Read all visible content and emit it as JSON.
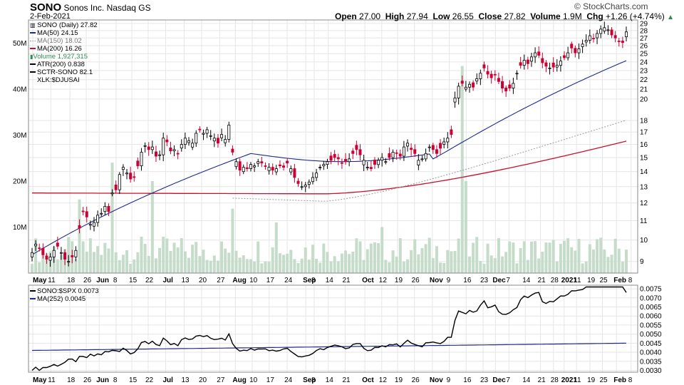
{
  "header": {
    "symbol": "SONO",
    "company": "Sonos Inc.",
    "exchange": "Nasdaq GS",
    "date": "2-Feb-2021",
    "open_label": "Open",
    "open": "27.00",
    "high_label": "High",
    "high": "27.94",
    "low_label": "Low",
    "low": "26.55",
    "close_label": "Close",
    "close": "27.82",
    "volume_label": "Volume",
    "volume": "1.9M",
    "chg_label": "Chg",
    "chg": "+1.26 (+4.74%)",
    "logo": "© StockCharts.com",
    "arrow_icon": "up-triangle-icon"
  },
  "legend": {
    "price": "SONO (Daily) 27.82",
    "ma50": "MA(50) 24.15",
    "ma150": "MA(150) 18.02",
    "ma200": "MA(200) 16.26",
    "volume": "Volume 1,927,315",
    "atr": "ATR(200) 0.838",
    "sctr": "SCTR-SONO 82.1",
    "sector": "XLK:$DJUSAI"
  },
  "lower_legend": {
    "ratio": "SONO:$SPX 0.0073",
    "ma252": "MA(252) 0.0045"
  },
  "colors": {
    "up": "#000000",
    "down": "#cc0033",
    "ma50": "#1f2a8c",
    "ma150": "#999999",
    "ma200": "#c8102e",
    "volume": "#c6dccb",
    "ratio": "#000000",
    "ratio_ma": "#1f2a8c",
    "grid": "#e6e6e6"
  },
  "chart_data": [
    {
      "type": "candlestick",
      "title": "SONO (Daily)",
      "x_tick_labels": [
        "May",
        "11",
        "18",
        "26",
        "Jun",
        "8",
        "15",
        "22",
        "Jul",
        "13",
        "20",
        "27",
        "Aug",
        "10",
        "17",
        "24",
        "Sep",
        "8",
        "14",
        "21",
        "Oct",
        "12",
        "19",
        "26",
        "Nov",
        "9",
        "16",
        "23",
        "Dec",
        "7",
        "14",
        "21",
        "28",
        "2021",
        "11",
        "19",
        "25",
        "Feb",
        "8"
      ],
      "y_tick_labels": [
        "29",
        "28",
        "27",
        "26",
        "25",
        "24",
        "23",
        "22",
        "21",
        "20",
        "18",
        "17",
        "16",
        "15",
        "14",
        "13",
        "12",
        "11",
        "10",
        "9"
      ],
      "ylim": [
        8.5,
        29.5
      ],
      "log_scale": true,
      "volume_tick_labels": [
        "10M",
        "20M",
        "30M",
        "40M",
        "50M"
      ],
      "volume_ylim": [
        0,
        55
      ],
      "closes": [
        9.4,
        9.8,
        9.6,
        9.3,
        9.1,
        9.2,
        9.5,
        9.7,
        9.4,
        9.1,
        9.0,
        9.2,
        9.5,
        10.6,
        11.5,
        11.2,
        10.8,
        10.9,
        11.3,
        11.4,
        11.8,
        11.5,
        12.6,
        12.8,
        13.8,
        14.3,
        13.9,
        13.5,
        13.6,
        14.4,
        15.4,
        15.9,
        15.6,
        15.8,
        15.1,
        15.2,
        16.5,
        16.2,
        15.5,
        15.6,
        15.3,
        16.0,
        16.5,
        16.3,
        16.1,
        16.9,
        17.2,
        16.9,
        17.2,
        16.7,
        16.5,
        16.1,
        16.8,
        16.4,
        17.6,
        15.4,
        14.7,
        14.1,
        14.3,
        14.2,
        14.5,
        14.4,
        14.7,
        14.6,
        14.4,
        14.3,
        14.1,
        14.2,
        14.4,
        14.3,
        14.6,
        14.2,
        13.6,
        13.2,
        13.0,
        13.1,
        13.3,
        13.6,
        13.9,
        14.3,
        14.5,
        14.7,
        14.8,
        15.0,
        14.9,
        14.6,
        14.7,
        14.9,
        15.3,
        15.6,
        15.2,
        14.8,
        14.3,
        14.2,
        14.5,
        14.8,
        15.0,
        14.7,
        15.0,
        15.4,
        15.3,
        15.1,
        15.8,
        16.1,
        15.6,
        15.3,
        14.8,
        14.9,
        15.3,
        15.8,
        15.6,
        15.3,
        15.7,
        16.2,
        16.5,
        16.8,
        20.1,
        21.3,
        21.6,
        21.2,
        21.5,
        21.2,
        22.1,
        22.7,
        23.3,
        22.6,
        22.2,
        22.5,
        21.8,
        21.1,
        20.8,
        21.1,
        21.6,
        22.7,
        23.6,
        24.2,
        23.8,
        24.6,
        25.1,
        24.8,
        23.9,
        23.5,
        23.3,
        23.4,
        23.6,
        24.1,
        24.5,
        25.1,
        25.7,
        25.1,
        25.6,
        26.2,
        26.7,
        27.3,
        26.9,
        27.6,
        28.2,
        28.4,
        28.1,
        27.4,
        27.0,
        26.6,
        26.4,
        27.82
      ],
      "ma50_label": "MA(50) 24.15",
      "ma150_label": "MA(150) 18.02",
      "ma200_label": "MA(200) 16.26"
    },
    {
      "type": "line",
      "title": "SONO:$SPX",
      "series": [
        {
          "name": "SONO:$SPX",
          "last": 0.0073
        },
        {
          "name": "MA(252)",
          "last": 0.0045
        }
      ],
      "y_tick_labels": [
        "0.0075",
        "0.0070",
        "0.0065",
        "0.0060",
        "0.0055",
        "0.0050",
        "0.0045",
        "0.0040",
        "0.0035",
        "0.0030"
      ],
      "ylim": [
        0.0029,
        0.0077
      ],
      "x_tick_labels": [
        "May",
        "11",
        "18",
        "26",
        "Jun",
        "8",
        "15",
        "22",
        "Jul",
        "13",
        "20",
        "27",
        "Aug",
        "10",
        "17",
        "24",
        "Sep",
        "8",
        "14",
        "21",
        "Oct",
        "12",
        "19",
        "26",
        "Nov",
        "9",
        "16",
        "23",
        "Dec",
        "7",
        "14",
        "21",
        "28",
        "2021",
        "11",
        "19",
        "25",
        "Feb",
        "8"
      ]
    }
  ]
}
